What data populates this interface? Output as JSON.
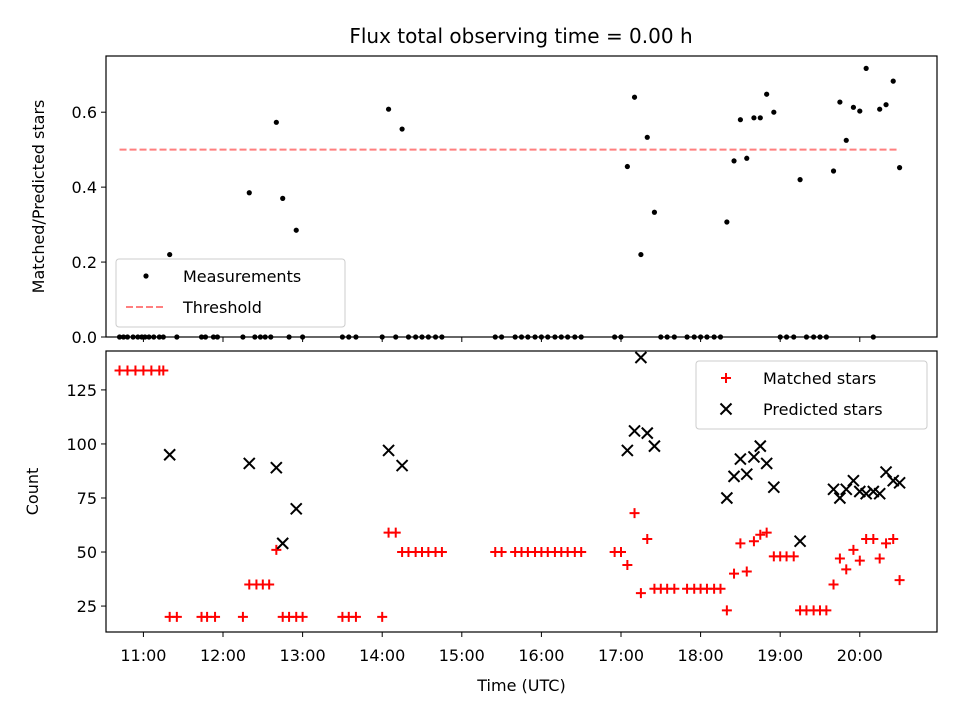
{
  "title": "Flux total observing time = 0.00 h",
  "chart_data": [
    {
      "type": "scatter",
      "ylabel": "Matched/Predicted stars",
      "xlim": [
        10.53,
        20.97
      ],
      "ylim": [
        0,
        0.75
      ],
      "yticks": [
        0.0,
        0.2,
        0.4,
        0.6
      ],
      "ytick_labels": [
        "0.0",
        "0.2",
        "0.4",
        "0.6"
      ],
      "legend_position": "lower-left",
      "series": [
        {
          "name": "Measurements",
          "marker": "dot",
          "color": "#000000",
          "points": [
            [
              10.7,
              0
            ],
            [
              10.75,
              0
            ],
            [
              10.8,
              0
            ],
            [
              10.87,
              0
            ],
            [
              10.93,
              0
            ],
            [
              10.98,
              0
            ],
            [
              11.02,
              0
            ],
            [
              11.07,
              0
            ],
            [
              11.13,
              0
            ],
            [
              11.2,
              0
            ],
            [
              11.25,
              0
            ],
            [
              11.33,
              0.22
            ],
            [
              11.42,
              0
            ],
            [
              11.73,
              0
            ],
            [
              11.78,
              0
            ],
            [
              11.88,
              0
            ],
            [
              11.93,
              0
            ],
            [
              12.25,
              0
            ],
            [
              12.33,
              0.385
            ],
            [
              12.4,
              0
            ],
            [
              12.47,
              0
            ],
            [
              12.53,
              0
            ],
            [
              12.6,
              0
            ],
            [
              12.67,
              0.573
            ],
            [
              12.75,
              0.37
            ],
            [
              12.83,
              0
            ],
            [
              12.92,
              0.285
            ],
            [
              13.0,
              0
            ],
            [
              13.5,
              0
            ],
            [
              13.58,
              0
            ],
            [
              13.67,
              0
            ],
            [
              14.0,
              0
            ],
            [
              14.08,
              0.608
            ],
            [
              14.17,
              0
            ],
            [
              14.25,
              0.555
            ],
            [
              14.33,
              0
            ],
            [
              14.42,
              0
            ],
            [
              14.5,
              0
            ],
            [
              14.58,
              0
            ],
            [
              14.67,
              0
            ],
            [
              14.75,
              0
            ],
            [
              15.42,
              0
            ],
            [
              15.5,
              0
            ],
            [
              15.67,
              0
            ],
            [
              15.75,
              0
            ],
            [
              15.83,
              0
            ],
            [
              15.92,
              0
            ],
            [
              16.0,
              0
            ],
            [
              16.08,
              0
            ],
            [
              16.17,
              0
            ],
            [
              16.25,
              0
            ],
            [
              16.33,
              0
            ],
            [
              16.42,
              0
            ],
            [
              16.5,
              0
            ],
            [
              16.92,
              0
            ],
            [
              17.0,
              0
            ],
            [
              17.08,
              0.455
            ],
            [
              17.17,
              0.64
            ],
            [
              17.25,
              0.22
            ],
            [
              17.33,
              0.533
            ],
            [
              17.42,
              0.333
            ],
            [
              17.5,
              0
            ],
            [
              17.58,
              0
            ],
            [
              17.67,
              0
            ],
            [
              17.83,
              0
            ],
            [
              17.92,
              0
            ],
            [
              18.0,
              0
            ],
            [
              18.08,
              0
            ],
            [
              18.17,
              0
            ],
            [
              18.25,
              0
            ],
            [
              18.33,
              0.307
            ],
            [
              18.42,
              0.47
            ],
            [
              18.5,
              0.58
            ],
            [
              18.58,
              0.477
            ],
            [
              18.67,
              0.585
            ],
            [
              18.75,
              0.585
            ],
            [
              18.83,
              0.648
            ],
            [
              18.92,
              0.6
            ],
            [
              19.0,
              0
            ],
            [
              19.08,
              0
            ],
            [
              19.17,
              0
            ],
            [
              19.25,
              0.42
            ],
            [
              19.33,
              0
            ],
            [
              19.42,
              0
            ],
            [
              19.5,
              0
            ],
            [
              19.58,
              0
            ],
            [
              19.67,
              0.443
            ],
            [
              19.75,
              0.627
            ],
            [
              19.83,
              0.525
            ],
            [
              19.92,
              0.613
            ],
            [
              20.0,
              0.603
            ],
            [
              20.08,
              0.717
            ],
            [
              20.17,
              0
            ],
            [
              20.25,
              0.608
            ],
            [
              20.33,
              0.62
            ],
            [
              20.42,
              0.683
            ],
            [
              20.5,
              0.452
            ]
          ]
        },
        {
          "name": "Threshold",
          "marker": "dashed-line",
          "color": "#ff7f7f",
          "points": [
            [
              10.7,
              0.5
            ],
            [
              20.5,
              0.5
            ]
          ]
        }
      ]
    },
    {
      "type": "scatter",
      "ylabel": "Count",
      "xlabel": "Time (UTC)",
      "xlim": [
        10.53,
        20.97
      ],
      "ylim": [
        13,
        143
      ],
      "yticks": [
        25,
        50,
        75,
        100,
        125
      ],
      "ytick_labels": [
        "25",
        "50",
        "75",
        "100",
        "125"
      ],
      "xticks": [
        11,
        12,
        13,
        14,
        15,
        16,
        17,
        18,
        19,
        20
      ],
      "xtick_labels": [
        "11:00",
        "12:00",
        "13:00",
        "14:00",
        "15:00",
        "16:00",
        "17:00",
        "18:00",
        "19:00",
        "20:00"
      ],
      "legend_position": "upper-right",
      "series": [
        {
          "name": "Matched stars",
          "marker": "plus",
          "color": "#ff0000",
          "points": [
            [
              10.7,
              134
            ],
            [
              10.8,
              134
            ],
            [
              10.9,
              134
            ],
            [
              11.0,
              134
            ],
            [
              11.1,
              134
            ],
            [
              11.2,
              134
            ],
            [
              11.25,
              134
            ],
            [
              11.33,
              20
            ],
            [
              11.42,
              20
            ],
            [
              11.73,
              20
            ],
            [
              11.8,
              20
            ],
            [
              11.9,
              20
            ],
            [
              12.25,
              20
            ],
            [
              12.33,
              35
            ],
            [
              12.42,
              35
            ],
            [
              12.5,
              35
            ],
            [
              12.58,
              35
            ],
            [
              12.67,
              51
            ],
            [
              12.75,
              20
            ],
            [
              12.83,
              20
            ],
            [
              12.92,
              20
            ],
            [
              13.0,
              20
            ],
            [
              13.5,
              20
            ],
            [
              13.58,
              20
            ],
            [
              13.67,
              20
            ],
            [
              14.0,
              20
            ],
            [
              14.08,
              59
            ],
            [
              14.17,
              59
            ],
            [
              14.25,
              50
            ],
            [
              14.33,
              50
            ],
            [
              14.42,
              50
            ],
            [
              14.5,
              50
            ],
            [
              14.58,
              50
            ],
            [
              14.67,
              50
            ],
            [
              14.75,
              50
            ],
            [
              15.42,
              50
            ],
            [
              15.5,
              50
            ],
            [
              15.67,
              50
            ],
            [
              15.75,
              50
            ],
            [
              15.83,
              50
            ],
            [
              15.92,
              50
            ],
            [
              16.0,
              50
            ],
            [
              16.08,
              50
            ],
            [
              16.17,
              50
            ],
            [
              16.25,
              50
            ],
            [
              16.33,
              50
            ],
            [
              16.42,
              50
            ],
            [
              16.5,
              50
            ],
            [
              16.92,
              50
            ],
            [
              17.0,
              50
            ],
            [
              17.08,
              44
            ],
            [
              17.17,
              68
            ],
            [
              17.25,
              31
            ],
            [
              17.33,
              56
            ],
            [
              17.42,
              33
            ],
            [
              17.5,
              33
            ],
            [
              17.58,
              33
            ],
            [
              17.67,
              33
            ],
            [
              17.83,
              33
            ],
            [
              17.92,
              33
            ],
            [
              18.0,
              33
            ],
            [
              18.08,
              33
            ],
            [
              18.17,
              33
            ],
            [
              18.25,
              33
            ],
            [
              18.33,
              23
            ],
            [
              18.42,
              40
            ],
            [
              18.5,
              54
            ],
            [
              18.58,
              41
            ],
            [
              18.67,
              55
            ],
            [
              18.75,
              58
            ],
            [
              18.83,
              59
            ],
            [
              18.92,
              48
            ],
            [
              19.0,
              48
            ],
            [
              19.08,
              48
            ],
            [
              19.17,
              48
            ],
            [
              19.25,
              23
            ],
            [
              19.33,
              23
            ],
            [
              19.42,
              23
            ],
            [
              19.5,
              23
            ],
            [
              19.58,
              23
            ],
            [
              19.67,
              35
            ],
            [
              19.75,
              47
            ],
            [
              19.83,
              42
            ],
            [
              19.92,
              51
            ],
            [
              20.0,
              46
            ],
            [
              20.08,
              56
            ],
            [
              20.17,
              56
            ],
            [
              20.25,
              47
            ],
            [
              20.33,
              54
            ],
            [
              20.42,
              56
            ],
            [
              20.5,
              37
            ]
          ]
        },
        {
          "name": "Predicted stars",
          "marker": "x",
          "color": "#000000",
          "points": [
            [
              11.33,
              95
            ],
            [
              12.33,
              91
            ],
            [
              12.67,
              89
            ],
            [
              12.75,
              54
            ],
            [
              12.92,
              70
            ],
            [
              14.08,
              97
            ],
            [
              14.25,
              90
            ],
            [
              17.08,
              97
            ],
            [
              17.17,
              106
            ],
            [
              17.25,
              140
            ],
            [
              17.33,
              105
            ],
            [
              17.42,
              99
            ],
            [
              18.33,
              75
            ],
            [
              18.42,
              85
            ],
            [
              18.5,
              93
            ],
            [
              18.58,
              86
            ],
            [
              18.67,
              94
            ],
            [
              18.75,
              99
            ],
            [
              18.83,
              91
            ],
            [
              18.92,
              80
            ],
            [
              19.25,
              55
            ],
            [
              19.67,
              79
            ],
            [
              19.75,
              75
            ],
            [
              19.83,
              79
            ],
            [
              19.92,
              83
            ],
            [
              20.0,
              78
            ],
            [
              20.08,
              77
            ],
            [
              20.17,
              78
            ],
            [
              20.25,
              77
            ],
            [
              20.33,
              87
            ],
            [
              20.42,
              83
            ],
            [
              20.5,
              82
            ]
          ]
        }
      ]
    }
  ]
}
